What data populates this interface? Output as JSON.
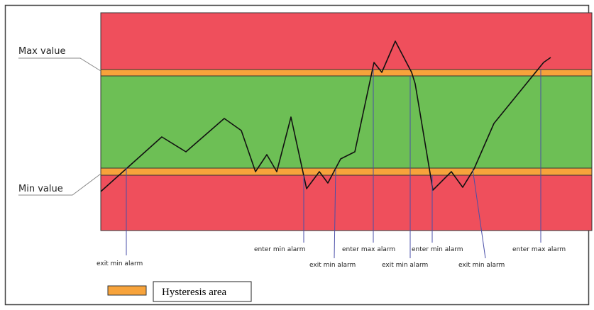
{
  "labels": {
    "max_value": "Max value",
    "min_value": "Min value"
  },
  "legend": {
    "hysteresis": "Hysteresis area"
  },
  "events": [
    {
      "id": "exit-min-alarm-1",
      "label": "exit min alarm"
    },
    {
      "id": "enter-min-alarm-1",
      "label": "enter min alarm"
    },
    {
      "id": "exit-min-alarm-2",
      "label": "exit min alarm"
    },
    {
      "id": "enter-max-alarm-1",
      "label": "enter max alarm"
    },
    {
      "id": "exit-min-alarm-3",
      "label": "exit min alarm"
    },
    {
      "id": "enter-min-alarm-2",
      "label": "enter min alarm"
    },
    {
      "id": "exit-min-alarm-4",
      "label": "exit min alarm"
    },
    {
      "id": "enter-max-alarm-2",
      "label": "enter max alarm"
    }
  ],
  "colors": {
    "alarm_zone": "#ef4f5c",
    "normal_zone": "#6dbf55",
    "hysteresis": "#f7a33b",
    "signal": "#111111",
    "event_marker": "#4a4fa8",
    "frame": "#444444"
  }
}
